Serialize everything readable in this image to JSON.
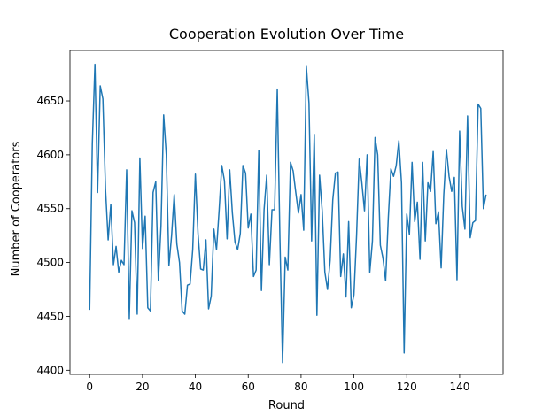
{
  "chart_data": {
    "type": "line",
    "title": "Cooperation Evolution Over Time",
    "xlabel": "Round",
    "ylabel": "Number of Cooperators",
    "xlim": [
      -7.45,
      156.45
    ],
    "ylim": [
      4396.15,
      4696.85
    ],
    "xticks": [
      0,
      20,
      40,
      60,
      80,
      100,
      120,
      140
    ],
    "yticks": [
      4400,
      4450,
      4500,
      4550,
      4600,
      4650
    ],
    "grid": false,
    "line_color": "#1f77b4",
    "series": [
      {
        "values": [
          4456,
          4610,
          4684,
          4565,
          4664,
          4652,
          4568,
          4521,
          4554,
          4498,
          4515,
          4491,
          4502,
          4498,
          4586,
          4448,
          4548,
          4537,
          4452,
          4597,
          4513,
          4543,
          4458,
          4455,
          4565,
          4575,
          4483,
          4534,
          4637,
          4600,
          4497,
          4525,
          4563,
          4517,
          4500,
          4455,
          4452,
          4479,
          4480,
          4512,
          4582,
          4527,
          4494,
          4493,
          4521,
          4457,
          4469,
          4531,
          4512,
          4549,
          4590,
          4576,
          4522,
          4586,
          4546,
          4519,
          4512,
          4527,
          4590,
          4583,
          4532,
          4545,
          4487,
          4493,
          4604,
          4474,
          4549,
          4581,
          4498,
          4549,
          4549,
          4661,
          4522,
          4407,
          4505,
          4493,
          4593,
          4585,
          4565,
          4546,
          4563,
          4530,
          4682,
          4648,
          4520,
          4619,
          4451,
          4581,
          4548,
          4491,
          4475,
          4502,
          4558,
          4583,
          4584,
          4487,
          4508,
          4468,
          4538,
          4458,
          4470,
          4525,
          4596,
          4574,
          4548,
          4600,
          4491,
          4520,
          4616,
          4600,
          4516,
          4504,
          4483,
          4541,
          4587,
          4580,
          4590,
          4613,
          4574,
          4416,
          4545,
          4526,
          4593,
          4538,
          4556,
          4503,
          4593,
          4520,
          4574,
          4566,
          4603,
          4536,
          4547,
          4495,
          4563,
          4605,
          4580,
          4566,
          4579,
          4484,
          4622,
          4552,
          4531,
          4636,
          4523,
          4537,
          4539,
          4647,
          4643,
          4550,
          4563
        ]
      }
    ]
  }
}
